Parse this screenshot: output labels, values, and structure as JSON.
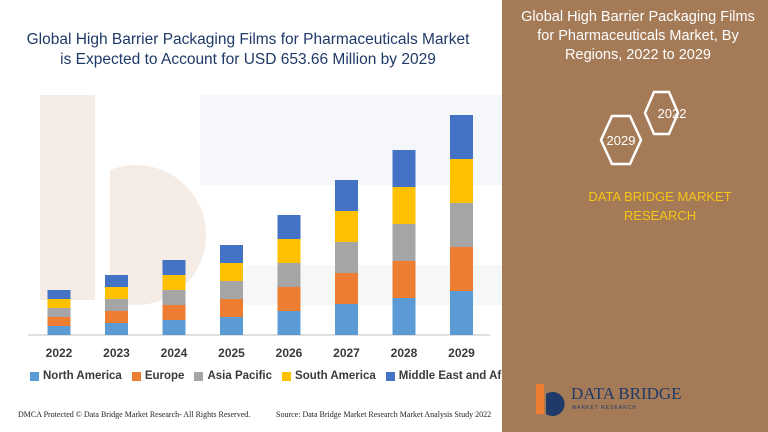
{
  "title_lines": [
    "Global High Barrier Packaging Films for Pharmaceuticals Market",
    "is Expected to Account for USD 653.66 Million by 2029"
  ],
  "panel": {
    "title_lines": [
      "Global High Barrier Packaging Films",
      "for Pharmaceuticals Market, By",
      "Regions, 2022 to 2029"
    ],
    "hex_top": "2022",
    "hex_bottom": "2029",
    "brand_lines": [
      "DATA BRIDGE MARKET",
      "RESEARCH"
    ],
    "logo_text": "DATA BRIDGE",
    "logo_sub": "MARKET RESEARCH"
  },
  "footer": {
    "left": "DMCA Protected © Data Bridge Market Research- All Rights Reserved.",
    "right": "Source: Data Bridge Market Research Market Analysis Study 2022"
  },
  "colors": {
    "panel_bg": "#a57a56",
    "title": "#1f3a68",
    "brand": "#f5c518",
    "north_america": "#5b9bd5",
    "europe": "#ed7d31",
    "asia_pacific": "#a5a5a5",
    "south_america": "#ffc000",
    "middle_east_africa": "#4472c4"
  },
  "chart_data": {
    "type": "bar",
    "stacked": true,
    "categories": [
      "2022",
      "2023",
      "2024",
      "2025",
      "2026",
      "2027",
      "2028",
      "2029"
    ],
    "series": [
      {
        "name": "North America",
        "color": "#5b9bd5",
        "values": [
          9,
          12,
          15,
          18,
          24,
          31,
          37,
          44
        ]
      },
      {
        "name": "Europe",
        "color": "#ed7d31",
        "values": [
          9,
          12,
          15,
          18,
          24,
          31,
          37,
          44
        ]
      },
      {
        "name": "Asia Pacific",
        "color": "#a5a5a5",
        "values": [
          9,
          12,
          15,
          18,
          24,
          31,
          37,
          44
        ]
      },
      {
        "name": "South America",
        "color": "#ffc000",
        "values": [
          9,
          12,
          15,
          18,
          24,
          31,
          37,
          44
        ]
      },
      {
        "name": "Middle East and Africa",
        "color": "#4472c4",
        "values": [
          9,
          12,
          15,
          18,
          24,
          31,
          37,
          44
        ]
      }
    ],
    "legend_position": "bottom",
    "grid": false,
    "ylim": [
      0,
      230
    ]
  }
}
